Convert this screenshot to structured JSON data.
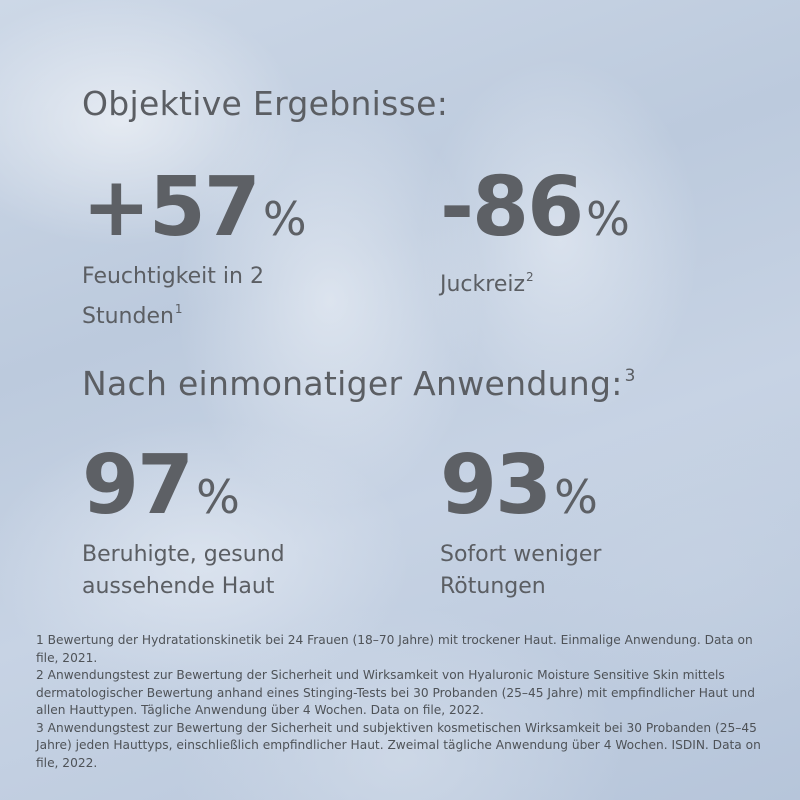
{
  "section1": {
    "heading": "Objektive Ergebnisse:"
  },
  "section2": {
    "heading": "Nach einmonatiger Anwendung:",
    "heading_ref": "3"
  },
  "stats": [
    {
      "value": "+57",
      "unit": "%",
      "line1": "Feuchtigkeit in 2",
      "line2": "Stunden",
      "ref": "1"
    },
    {
      "value": "-86",
      "unit": "%",
      "line1": "Juckreiz",
      "line2": "",
      "ref": "2"
    },
    {
      "value": "97",
      "unit": "%",
      "line1": "Beruhigte, gesund",
      "line2": "aussehende Haut",
      "ref": ""
    },
    {
      "value": "93",
      "unit": "%",
      "line1": "Sofort weniger",
      "line2": "Rötungen",
      "ref": ""
    }
  ],
  "footnotes": {
    "note1": "1 Bewertung der Hydratationskinetik bei 24 Frauen (18–70 Jahre) mit trockener Haut. Einmalige Anwendung. Data on file, 2021.",
    "note2": "2 Anwendungstest zur Bewertung der Sicherheit und Wirksamkeit von Hyaluronic Moisture Sensitive Skin mittels dermatologischer Bewertung anhand eines Stinging-Tests bei 30 Probanden (25–45 Jahre) mit empfindlicher Haut und allen Hauttypen. Tägliche Anwendung über 4 Wochen. Data on file, 2022.",
    "note3": "3 Anwendungstest zur Bewertung der Sicherheit und subjektiven kosmetischen Wirksamkeit bei 30 Probanden (25–45 Jahre) jeden Hauttyps, einschließlich empfindlicher Haut. Zweimal tägliche Anwendung über 4 Wochen. ISDIN. Data on file, 2022."
  },
  "colors": {
    "text": "#5b5e63",
    "background": "#c4d0e1"
  }
}
